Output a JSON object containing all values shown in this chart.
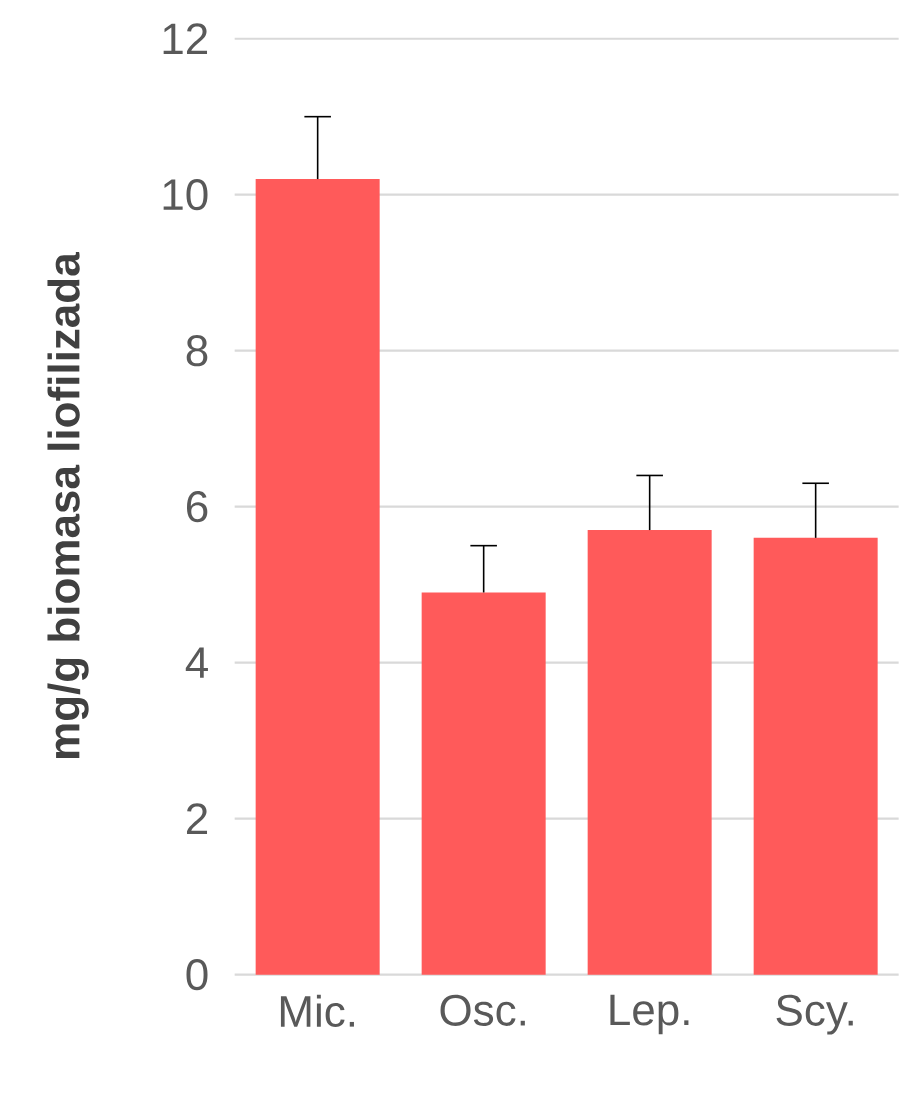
{
  "chart_data": {
    "type": "bar",
    "ylabel": "mg/g biomasa liofilizada",
    "categories": [
      "Mic.",
      "Osc.",
      "Lep.",
      "Scy."
    ],
    "values": [
      10.2,
      4.9,
      5.7,
      5.6
    ],
    "errors": [
      [
        10.2,
        11.0
      ],
      [
        4.9,
        5.5
      ],
      [
        5.7,
        6.4
      ],
      [
        5.6,
        6.3
      ]
    ],
    "color": "#ff5a5a",
    "ylim": [
      0,
      12
    ],
    "yticks": [
      0,
      2,
      4,
      6,
      8,
      10,
      12
    ],
    "grid": "y"
  }
}
